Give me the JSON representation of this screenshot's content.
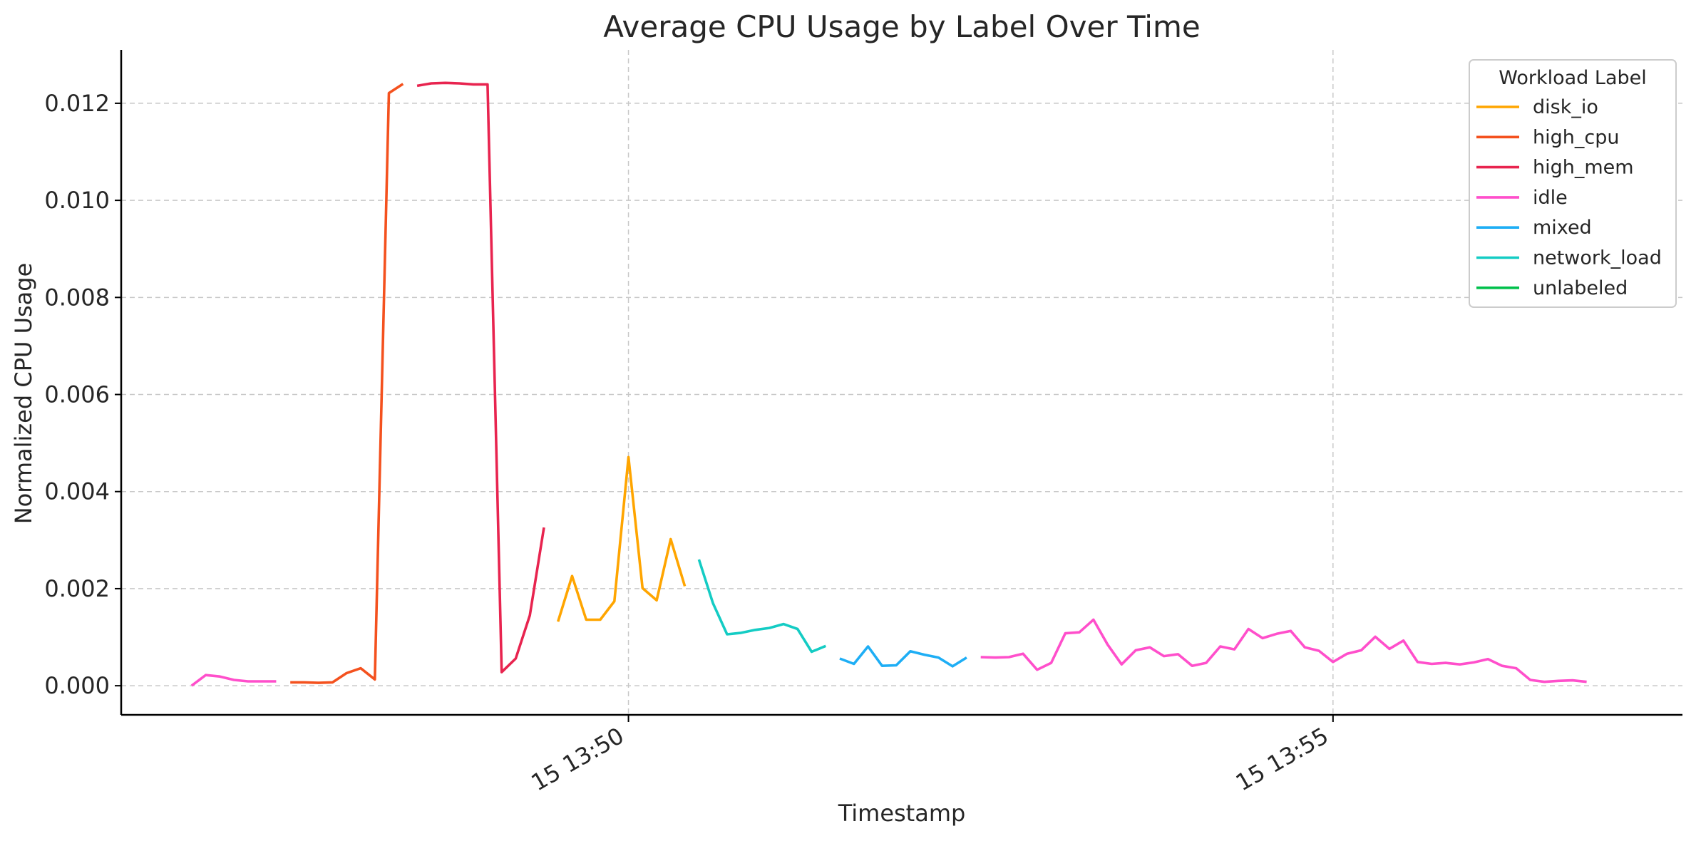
{
  "chart_data": {
    "type": "line",
    "title": "Average CPU Usage by Label Over Time",
    "xlabel": "Timestamp",
    "ylabel": "Normalized CPU Usage",
    "x_unit": "minutes",
    "xlim": [
      46.4,
      57.48
    ],
    "ylim": [
      -0.0006,
      0.0131
    ],
    "x_ticks": [
      {
        "value": 50,
        "label": "15 13:50"
      },
      {
        "value": 55,
        "label": "15 13:55"
      }
    ],
    "y_ticks": [
      {
        "value": 0.0,
        "label": "0.000"
      },
      {
        "value": 0.002,
        "label": "0.002"
      },
      {
        "value": 0.004,
        "label": "0.004"
      },
      {
        "value": 0.006,
        "label": "0.006"
      },
      {
        "value": 0.008,
        "label": "0.008"
      },
      {
        "value": 0.01,
        "label": "0.010"
      },
      {
        "value": 0.012,
        "label": "0.012"
      }
    ],
    "grid": true,
    "legend": {
      "title": "Workload Label",
      "position": "top-right",
      "entries": [
        {
          "label": "disk_io",
          "color": "#FFA500"
        },
        {
          "label": "high_cpu",
          "color": "#F4511E"
        },
        {
          "label": "high_mem",
          "color": "#E8244F"
        },
        {
          "label": "idle",
          "color": "#FF4FCB"
        },
        {
          "label": "mixed",
          "color": "#1EAEF5"
        },
        {
          "label": "network_load",
          "color": "#14CCC4"
        },
        {
          "label": "unlabeled",
          "color": "#00C04B"
        }
      ]
    },
    "segments": [
      {
        "label": "idle",
        "color": "#FF4FCB",
        "points": [
          [
            46.9,
            0.0
          ],
          [
            47.0,
            0.00022
          ],
          [
            47.1,
            0.00019
          ],
          [
            47.2,
            0.00012
          ],
          [
            47.3,
            9e-05
          ],
          [
            47.4,
            9e-05
          ],
          [
            47.5,
            9e-05
          ]
        ]
      },
      {
        "label": "high_cpu",
        "color": "#F4511E",
        "points": [
          [
            47.6,
            7e-05
          ],
          [
            47.7,
            7e-05
          ],
          [
            47.8,
            6e-05
          ],
          [
            47.9,
            7e-05
          ],
          [
            48.0,
            0.00026
          ],
          [
            48.1,
            0.00036
          ],
          [
            48.2,
            0.00013
          ],
          [
            48.3,
            0.01221
          ],
          [
            48.4,
            0.0124
          ]
        ]
      },
      {
        "label": "high_mem",
        "color": "#E8244F",
        "points": [
          [
            48.5,
            0.01236
          ],
          [
            48.6,
            0.01241
          ],
          [
            48.7,
            0.01242
          ],
          [
            48.8,
            0.01241
          ],
          [
            48.9,
            0.01239
          ],
          [
            49.0,
            0.01239
          ],
          [
            49.1,
            0.00028
          ],
          [
            49.2,
            0.00056
          ],
          [
            49.3,
            0.00145
          ],
          [
            49.4,
            0.00326
          ]
        ]
      },
      {
        "label": "disk_io",
        "color": "#FFA500",
        "points": [
          [
            49.5,
            0.00132
          ],
          [
            49.6,
            0.00226
          ],
          [
            49.7,
            0.00136
          ],
          [
            49.8,
            0.00136
          ],
          [
            49.9,
            0.00174
          ],
          [
            50.0,
            0.00471
          ],
          [
            50.1,
            0.00201
          ],
          [
            50.2,
            0.00176
          ],
          [
            50.3,
            0.00302
          ],
          [
            50.4,
            0.00205
          ]
        ]
      },
      {
        "label": "network_load",
        "color": "#14CCC4",
        "points": [
          [
            50.5,
            0.0026
          ],
          [
            50.6,
            0.0017
          ],
          [
            50.7,
            0.00106
          ],
          [
            50.8,
            0.00109
          ],
          [
            50.9,
            0.00115
          ],
          [
            51.0,
            0.00119
          ],
          [
            51.1,
            0.00127
          ],
          [
            51.2,
            0.00117
          ],
          [
            51.3,
            0.0007
          ],
          [
            51.4,
            0.00082
          ]
        ]
      },
      {
        "label": "mixed",
        "color": "#1EAEF5",
        "points": [
          [
            51.5,
            0.00056
          ],
          [
            51.6,
            0.00045
          ],
          [
            51.7,
            0.00081
          ],
          [
            51.8,
            0.00041
          ],
          [
            51.9,
            0.00042
          ],
          [
            52.0,
            0.00071
          ],
          [
            52.1,
            0.00064
          ],
          [
            52.2,
            0.00058
          ],
          [
            52.3,
            0.0004
          ],
          [
            52.4,
            0.00058
          ]
        ]
      },
      {
        "label": "idle",
        "color": "#FF4FCB",
        "points": [
          [
            52.5,
            0.00059
          ],
          [
            52.6,
            0.00058
          ],
          [
            52.7,
            0.00059
          ],
          [
            52.8,
            0.00066
          ],
          [
            52.9,
            0.00033
          ],
          [
            53.0,
            0.00047
          ],
          [
            53.1,
            0.00108
          ],
          [
            53.2,
            0.0011
          ],
          [
            53.3,
            0.00136
          ],
          [
            53.4,
            0.00085
          ],
          [
            53.5,
            0.00044
          ],
          [
            53.6,
            0.00073
          ],
          [
            53.7,
            0.00079
          ],
          [
            53.8,
            0.00061
          ],
          [
            53.9,
            0.00065
          ],
          [
            54.0,
            0.00041
          ],
          [
            54.1,
            0.00047
          ],
          [
            54.2,
            0.00081
          ],
          [
            54.3,
            0.00075
          ],
          [
            54.4,
            0.00117
          ],
          [
            54.5,
            0.00098
          ],
          [
            54.6,
            0.00107
          ],
          [
            54.7,
            0.00113
          ],
          [
            54.8,
            0.00079
          ],
          [
            54.9,
            0.00072
          ],
          [
            55.0,
            0.00049
          ],
          [
            55.1,
            0.00066
          ],
          [
            55.2,
            0.00073
          ],
          [
            55.3,
            0.00101
          ],
          [
            55.4,
            0.00076
          ],
          [
            55.5,
            0.00093
          ],
          [
            55.6,
            0.00049
          ],
          [
            55.7,
            0.00045
          ],
          [
            55.8,
            0.00047
          ],
          [
            55.9,
            0.00044
          ],
          [
            56.0,
            0.00048
          ],
          [
            56.1,
            0.00055
          ],
          [
            56.2,
            0.00041
          ],
          [
            56.3,
            0.00036
          ],
          [
            56.4,
            0.00012
          ],
          [
            56.5,
            8e-05
          ],
          [
            56.6,
            0.0001
          ],
          [
            56.7,
            0.00011
          ],
          [
            56.8,
            8e-05
          ]
        ]
      }
    ]
  }
}
